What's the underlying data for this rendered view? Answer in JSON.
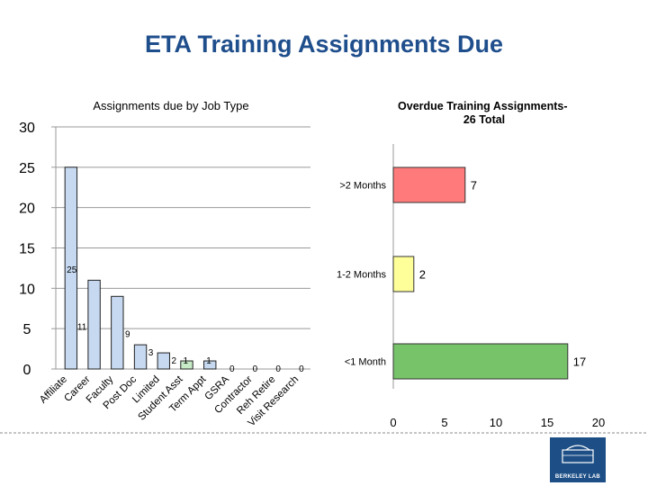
{
  "slide": {
    "title": "ETA Training Assignments Due",
    "logo_text": "BERKELEY LAB"
  },
  "chart_data": [
    {
      "type": "bar",
      "title": "Assignments due by Job Type",
      "categories": [
        "Affiliate",
        "Career",
        "Faculty",
        "Post Doc",
        "Limited",
        "Student Asst",
        "Term Appt",
        "GSRA",
        "Contractor",
        "Reh Retire",
        "Visit Research"
      ],
      "values": [
        25,
        11,
        9,
        3,
        2,
        1,
        1,
        0,
        0,
        0,
        0
      ],
      "data_labels": [
        "25",
        "11",
        "9",
        "3",
        "2",
        "1",
        "1",
        "0",
        "0",
        "0",
        "0"
      ],
      "y_ticks": [
        "0",
        "5",
        "10",
        "15",
        "20",
        "25",
        "30"
      ],
      "ylim": [
        0,
        30
      ],
      "grid": true,
      "bar_color": "#c6d9f1",
      "highlight_colors": [
        "#c6d9f1",
        "#c6d9f1",
        "#c6d9f1",
        "#c6d9f1",
        "#c6d9f1",
        "#c6ebc6",
        "#c6d9f1",
        "#c6d9f1",
        "#c6d9f1",
        "#c6d9f1",
        "#c6d9f1"
      ],
      "orientation": "vertical"
    },
    {
      "type": "bar",
      "orientation": "horizontal",
      "title": "Overdue Training Assignments- 26 Total",
      "categories": [
        ">2 Months",
        "1-2 Months",
        "<1 Month"
      ],
      "values": [
        7,
        2,
        17
      ],
      "data_labels": [
        "7",
        "2",
        "17"
      ],
      "colors": [
        "#ff7b7b",
        "#ffff99",
        "#77c36a"
      ],
      "x_ticks": [
        "0",
        "5",
        "10",
        "15",
        "20"
      ],
      "xlim": [
        0,
        20
      ],
      "grid": false
    }
  ]
}
